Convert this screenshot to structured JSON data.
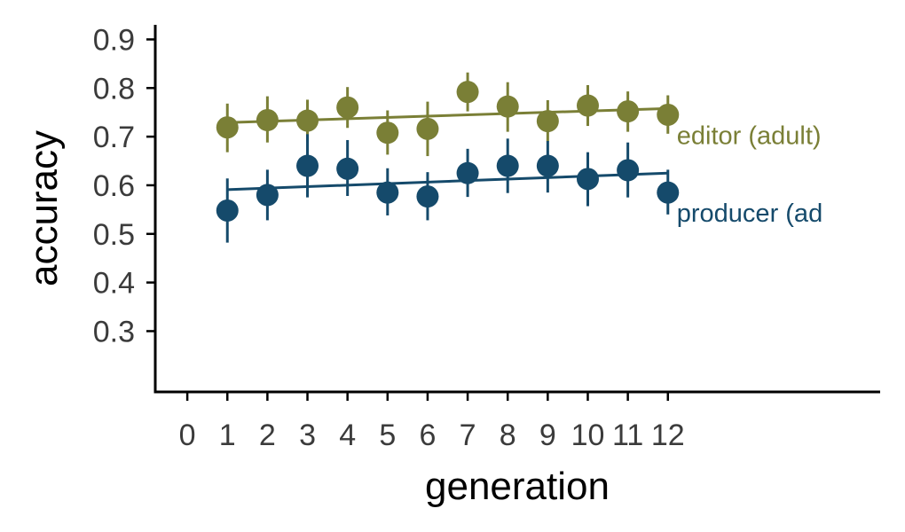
{
  "chart_data": {
    "type": "scatter",
    "title": "",
    "xlabel": "generation",
    "ylabel": "accuracy",
    "x_ticks": [
      0,
      1,
      2,
      3,
      4,
      5,
      6,
      7,
      8,
      9,
      10,
      11,
      12
    ],
    "y_ticks": [
      0.3,
      0.4,
      0.5,
      0.6,
      0.7,
      0.8,
      0.9
    ],
    "xlim": [
      -0.8,
      17.3
    ],
    "ylim": [
      0.175,
      0.93
    ],
    "grid": false,
    "legend": "none",
    "series": [
      {
        "name": "editor (adult)",
        "color": "#7a7f36",
        "x": [
          1,
          2,
          3,
          4,
          5,
          6,
          7,
          8,
          9,
          10,
          11,
          12
        ],
        "y": [
          0.719,
          0.734,
          0.733,
          0.76,
          0.708,
          0.716,
          0.792,
          0.762,
          0.732,
          0.764,
          0.752,
          0.745
        ],
        "err_low": [
          0.668,
          0.688,
          0.69,
          0.718,
          0.663,
          0.66,
          0.752,
          0.71,
          0.69,
          0.722,
          0.71,
          0.706
        ],
        "err_high": [
          0.768,
          0.783,
          0.776,
          0.802,
          0.754,
          0.772,
          0.832,
          0.812,
          0.775,
          0.806,
          0.793,
          0.785
        ],
        "trend": {
          "x": [
            1,
            12
          ],
          "y": [
            0.729,
            0.758
          ]
        }
      },
      {
        "name": "producer (ad",
        "color": "#154a6b",
        "x": [
          1,
          2,
          3,
          4,
          5,
          6,
          7,
          8,
          9,
          10,
          11,
          12
        ],
        "y": [
          0.548,
          0.58,
          0.64,
          0.634,
          0.585,
          0.577,
          0.625,
          0.64,
          0.64,
          0.613,
          0.631,
          0.585
        ],
        "err_low": [
          0.482,
          0.528,
          0.575,
          0.578,
          0.538,
          0.528,
          0.576,
          0.584,
          0.585,
          0.557,
          0.575,
          0.54
        ],
        "err_high": [
          0.614,
          0.632,
          0.705,
          0.693,
          0.635,
          0.627,
          0.675,
          0.696,
          0.691,
          0.668,
          0.688,
          0.632
        ],
        "trend": {
          "x": [
            1,
            12
          ],
          "y": [
            0.591,
            0.625
          ]
        }
      }
    ]
  }
}
